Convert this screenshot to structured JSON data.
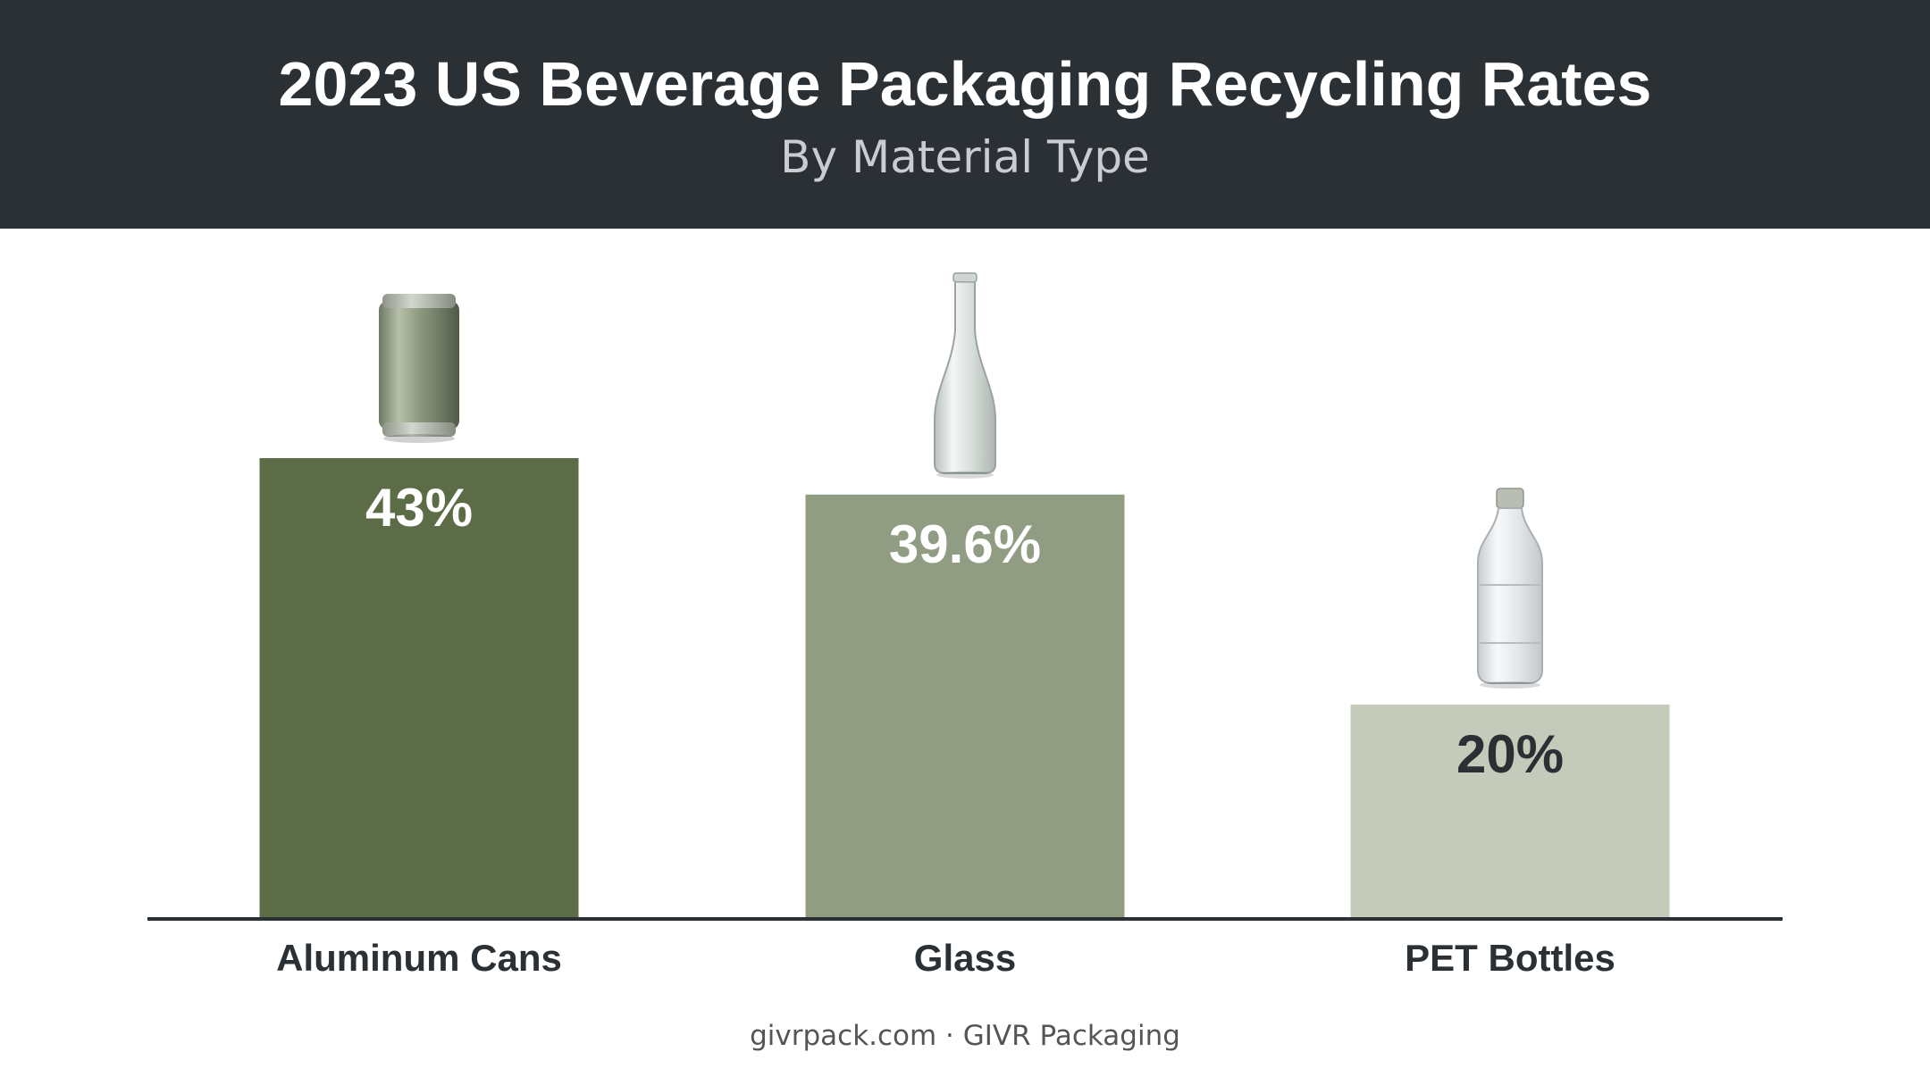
{
  "header": {
    "title": "2023 US Beverage Packaging Recycling Rates",
    "subtitle": "By Material Type"
  },
  "footer": {
    "source": "givrpack.com · GIVR Packaging"
  },
  "colors": {
    "header_bg": "#2b3035",
    "bar_aluminum": "#5b6c47",
    "bar_glass": "#909d83",
    "bar_pet": "#c5cbba",
    "value_label_light": "#ffffff",
    "value_label_dark": "#2b3035",
    "axis": "#2b3035"
  },
  "chart_data": {
    "type": "bar",
    "title": "2023 US Beverage Packaging Recycling Rates",
    "subtitle": "By Material Type",
    "categories": [
      "Aluminum Cans",
      "Glass",
      "PET Bottles"
    ],
    "values": [
      43,
      39.6,
      20
    ],
    "value_labels": [
      "43%",
      "39.6%",
      "20%"
    ],
    "icons": [
      "aluminum-can-icon",
      "glass-bottle-icon",
      "pet-bottle-icon"
    ],
    "xlabel": "",
    "ylabel": "",
    "ylim": [
      0,
      50
    ],
    "grid": false,
    "legend": "none"
  }
}
